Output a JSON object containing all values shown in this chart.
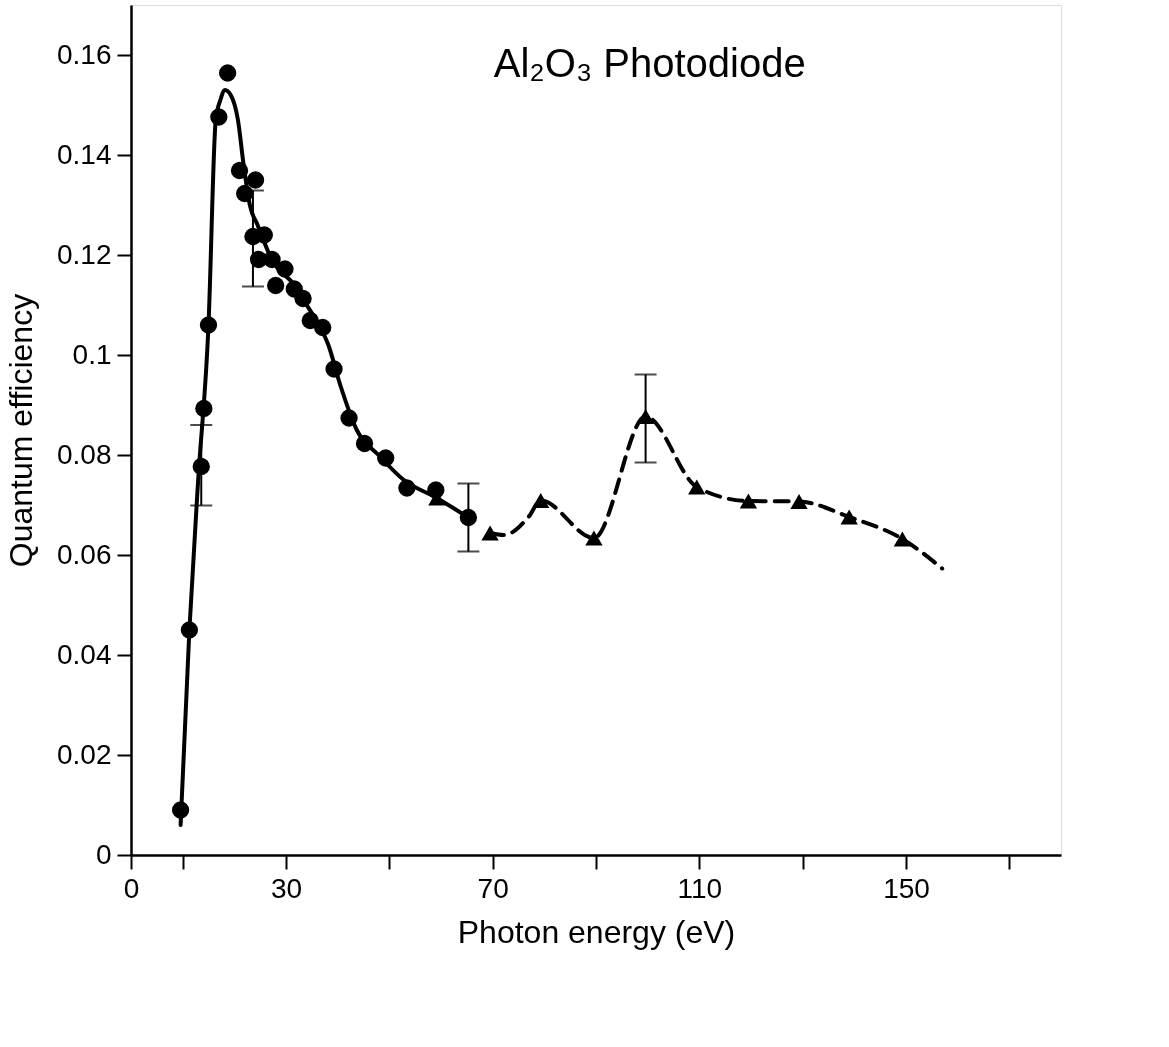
{
  "chart_data": {
    "type": "scatter",
    "xlabel": "Photon  energy (eV)",
    "ylabel": "Quantum  efficiency",
    "annotations": [
      "Al₂O₃ Photodiode"
    ],
    "xlim": [
      0,
      180
    ],
    "xticks": [
      0,
      {
        "value": 10,
        "label": null
      },
      30,
      {
        "value": 50,
        "label": null
      },
      70,
      {
        "value": 90,
        "label": null
      },
      110,
      {
        "value": 130,
        "label": null
      },
      150,
      {
        "value": 170,
        "label": null
      }
    ],
    "ylim": [
      0,
      0.17
    ],
    "yticks": [
      0,
      0.02,
      0.04,
      0.06,
      0.08,
      0.1,
      0.12,
      0.14,
      0.16
    ],
    "grid": false,
    "series": [
      {
        "type": "line",
        "line_style": "solid",
        "marker": "none",
        "color": "#000000",
        "x": [
          9.6,
          11.3,
          13.0,
          15.0,
          16.4,
          17.3,
          18.2,
          19.3,
          20.7,
          21.8,
          23.0,
          24.5,
          27.3,
          31.6,
          34.0,
          35.8,
          38.2,
          40.5,
          43.7,
          47.9,
          52.8,
          59.0,
          65.3
        ],
        "values": [
          0.006,
          0.045,
          0.075,
          0.106,
          0.147,
          0.151,
          0.153,
          0.152,
          0.147,
          0.138,
          0.13,
          0.126,
          0.119,
          0.114,
          0.11,
          0.107,
          0.102,
          0.094,
          0.085,
          0.08,
          0.075,
          0.0715,
          0.0675
        ]
      },
      {
        "type": "line",
        "line_style": "dashed",
        "marker": "none",
        "color": "#000000",
        "x": [
          69.5,
          72.2,
          77.0,
          79.3,
          89.6,
          99.6,
          109.5,
          119.5,
          129.3,
          139.0,
          149.3,
          157.0
        ],
        "values": [
          0.0644,
          0.064,
          0.0677,
          0.0709,
          0.0634,
          0.0877,
          0.0736,
          0.0708,
          0.0707,
          0.0676,
          0.0632,
          0.0573
        ]
      },
      {
        "type": "scatter",
        "marker": "circle",
        "color": "#000000",
        "x": [
          9.6,
          11.3,
          13.6,
          14.1,
          15.0,
          17.0,
          18.7,
          21.0,
          22.0,
          23.6,
          24.1,
          24.7,
          25.8,
          27.3,
          28.0,
          29.8,
          31.6,
          33.3,
          34.7,
          37.1,
          39.3,
          42.2,
          45.2,
          49.3,
          53.4,
          59.0,
          65.3
        ],
        "values": [
          0.009,
          0.045,
          0.0777,
          0.0893,
          0.106,
          0.1476,
          0.1564,
          0.1369,
          0.1323,
          0.1237,
          0.135,
          0.1191,
          0.124,
          0.1191,
          0.1139,
          0.1172,
          0.1132,
          0.1113,
          0.1069,
          0.1055,
          0.0972,
          0.0874,
          0.0823,
          0.0794,
          0.0734,
          0.073,
          0.0675
        ],
        "errors": [
          null,
          null,
          [
            0.0699,
            0.086
          ],
          null,
          null,
          null,
          null,
          null,
          null,
          [
            0.1137,
            0.1329
          ],
          null,
          null,
          null,
          null,
          null,
          null,
          null,
          null,
          null,
          null,
          null,
          null,
          null,
          null,
          null,
          null,
          [
            0.0607,
            0.0743
          ]
        ]
      },
      {
        "type": "scatter",
        "marker": "triangle",
        "color": "#000000",
        "x": [
          59.2,
          69.5,
          79.3,
          89.6,
          99.6,
          109.5,
          119.5,
          129.3,
          139.0,
          149.3
        ],
        "values": [
          0.0714,
          0.0644,
          0.0709,
          0.0634,
          0.0877,
          0.0736,
          0.0708,
          0.0707,
          0.0676,
          0.0632
        ],
        "errors": [
          null,
          null,
          null,
          null,
          [
            0.0785,
            0.0961
          ],
          null,
          null,
          null,
          null,
          null
        ]
      }
    ]
  }
}
